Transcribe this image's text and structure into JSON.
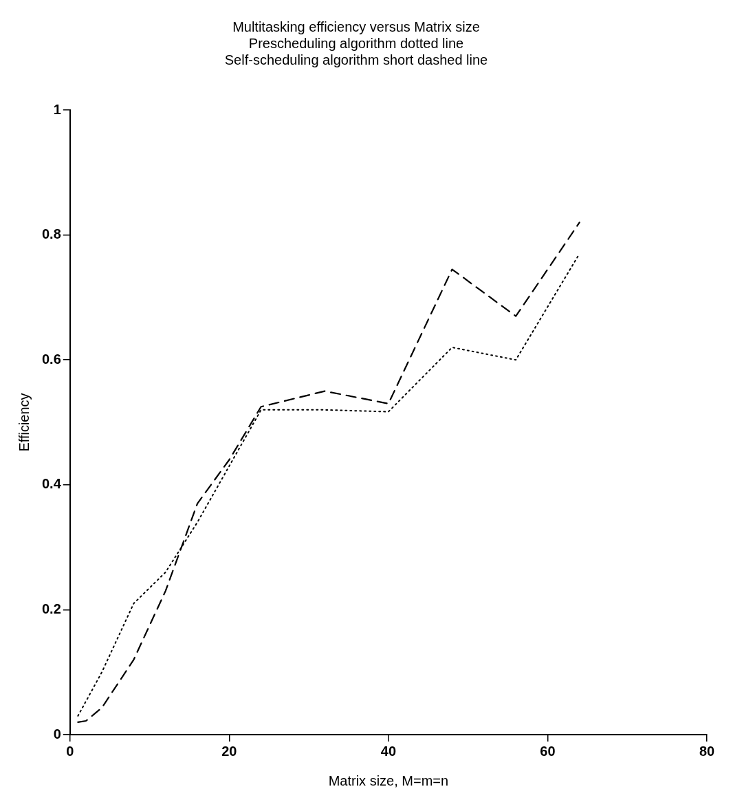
{
  "chart_data": {
    "type": "line",
    "title": [
      "Multitasking efficiency versus Matrix size",
      "Prescheduling algorithm dotted line",
      "Self-scheduling algorithm short dashed line"
    ],
    "xlabel": "Matrix size, M=m=n",
    "ylabel": "Efficiency",
    "xlim": [
      0,
      80
    ],
    "xticks": [
      0,
      20,
      40,
      60,
      80
    ],
    "ylim": [
      0,
      1
    ],
    "yticks": [
      0,
      0.2,
      0.4,
      0.6,
      0.8,
      1
    ],
    "grid": false,
    "legend": false,
    "marker": "none",
    "series": [
      {
        "color": "#000000",
        "line_style": "dotted",
        "x": [
          1,
          4,
          8,
          12,
          16,
          20,
          24,
          32,
          40,
          48,
          56,
          64
        ],
        "values": [
          0.03,
          0.1,
          0.21,
          0.26,
          0.34,
          0.43,
          0.52,
          0.52,
          0.517,
          0.62,
          0.6,
          0.77
        ]
      },
      {
        "color": "#000000",
        "line_style": "dashed",
        "x": [
          1,
          2,
          4,
          8,
          12,
          16,
          20,
          24,
          32,
          40,
          48,
          56,
          64
        ],
        "values": [
          0.02,
          0.022,
          0.043,
          0.12,
          0.23,
          0.37,
          0.44,
          0.525,
          0.55,
          0.53,
          0.745,
          0.67,
          0.82
        ]
      }
    ]
  }
}
